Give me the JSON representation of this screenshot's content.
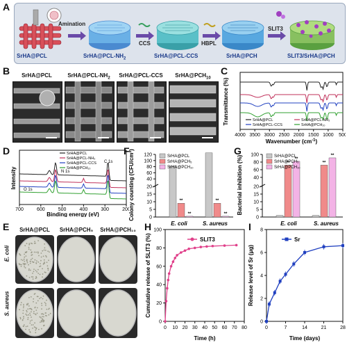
{
  "panel_letters": [
    "A",
    "B",
    "C",
    "D",
    "E",
    "F",
    "G",
    "H",
    "I"
  ],
  "panelA": {
    "steps": [
      "SrHA@PCL",
      "SrHA@PCL-NH",
      "SrHA@PCL-CCS",
      "SrHA@PCH",
      "SLIT3/SrHA@PCH"
    ],
    "step2_sub": "2",
    "arrows": [
      "Amination",
      "CCS",
      "HBPL",
      "SLIT3"
    ]
  },
  "panelB": {
    "titles": [
      "SrHA@PCL",
      "SrHA@PCL-NH",
      "SrHA@PCL-CCS",
      "SrHA@PCH"
    ],
    "title2_sub": "2",
    "title4_sub": "10"
  },
  "panelC": {
    "ylabel": "Transmittance (%)",
    "xlabel": "Wavenumber (cm",
    "xlabel_sup": "-1",
    "xlabel_end": ")",
    "xticks": [
      "4000",
      "3500",
      "3000",
      "2500",
      "2000",
      "1500",
      "1000",
      "500"
    ],
    "legend": [
      "SrHA@PCL",
      "SrHA@PCL-NH₂",
      "SrHA@PCL-CCS",
      "SrHA@PCH₁₀"
    ],
    "colors": [
      "#222222",
      "#c0305a",
      "#2040c0",
      "#30a030"
    ]
  },
  "panelD": {
    "ylabel": "Intensity",
    "xlabel": "Binding energy (eV)",
    "xticks": [
      "700",
      "600",
      "500",
      "400",
      "300",
      "200"
    ],
    "legend": [
      "SrHA@PCL",
      "SrHA@PCL-NH₂",
      "SrHA@PCL-CCS",
      "SrHA@PCH₁₀"
    ],
    "peaks": [
      "N 1s",
      "C 1s",
      "O 1s"
    ],
    "colors": [
      "#222222",
      "#c0305a",
      "#2040c0",
      "#30a030"
    ]
  },
  "panelE": {
    "cols": [
      "SrHA@PCL",
      "SrHA@PCH₅",
      "SrHA@PCH₁₀"
    ],
    "rows": [
      "E. coli",
      "S. aureus"
    ]
  },
  "panelF": {
    "ylabel": "Colony counting (CFU/cm²)",
    "yticks": [
      "0",
      "5",
      "10",
      "15",
      "20",
      "40",
      "60",
      "80",
      "100",
      "120"
    ],
    "groups": [
      "E. coli",
      "S. aureus"
    ],
    "legend": [
      "SrHA@PCL",
      "SrHA@PCH₅",
      "SrHA@PCH₁₀"
    ],
    "stars": "**",
    "colors": [
      "#c8c8c8",
      "#f08a8a",
      "#f3b3e6"
    ]
  },
  "panelG": {
    "ylabel": "Bacterial inhibition (%)",
    "yticks": [
      "0",
      "5",
      "10",
      "15",
      "20",
      "40",
      "60",
      "80",
      "100"
    ],
    "groups": [
      "E. coli",
      "S. aureus"
    ],
    "legend": [
      "SrHA@PCL",
      "SrHA@PCH₅",
      "SrHA@PCH₁₀"
    ],
    "stars": "**",
    "colors": [
      "#c8c8c8",
      "#f08a8a",
      "#f3b3e6"
    ]
  },
  "panelH": {
    "ylabel": "Cumulative release of SLIT3 (%)",
    "xlabel": "Time (h)",
    "xticks": [
      "0",
      "10",
      "20",
      "30",
      "40",
      "50",
      "60",
      "70",
      "80"
    ],
    "yticks": [
      "0",
      "20",
      "40",
      "60",
      "80",
      "100"
    ],
    "legend": "SLIT3",
    "color": "#e0408a"
  },
  "panelI": {
    "ylabel": "Release level of Sr (μg)",
    "xlabel": "Time (days)",
    "xticks": [
      "0",
      "7",
      "14",
      "21",
      "28"
    ],
    "yticks": [
      "0",
      "2",
      "4",
      "6",
      "8"
    ],
    "legend": "Sr",
    "color": "#2040c0"
  },
  "chart_data": [
    {
      "type": "bar",
      "panel": "F",
      "ylabel": "Colony counting (CFU/cm²)",
      "categories": [
        "E. coli",
        "S. aureus"
      ],
      "series": [
        {
          "name": "SrHA@PCL",
          "values": [
            82,
            125
          ]
        },
        {
          "name": "SrHA@PCH₅",
          "values": [
            9,
            9
          ]
        },
        {
          "name": "SrHA@PCH₁₀",
          "values": [
            0.5,
            0.5
          ]
        }
      ]
    },
    {
      "type": "bar",
      "panel": "G",
      "ylabel": "Bacterial inhibition (%)",
      "categories": [
        "E. coli",
        "S. aureus"
      ],
      "ylim": [
        0,
        100
      ],
      "series": [
        {
          "name": "SrHA@PCL",
          "values": [
            1,
            1
          ]
        },
        {
          "name": "SrHA@PCH₅",
          "values": [
            72,
            72
          ]
        },
        {
          "name": "SrHA@PCH₁₀",
          "values": [
            82,
            91
          ]
        }
      ]
    },
    {
      "type": "line",
      "panel": "H",
      "xlabel": "Time (h)",
      "ylabel": "Cumulative release of SLIT3 (%)",
      "xlim": [
        0,
        80
      ],
      "ylim": [
        0,
        100
      ],
      "series": [
        {
          "name": "SLIT3",
          "x": [
            0,
            1,
            2,
            3,
            4,
            6,
            8,
            10,
            12,
            16,
            20,
            24,
            30,
            36,
            42,
            48,
            60,
            72
          ],
          "y": [
            0,
            22,
            36,
            45,
            52,
            60,
            65,
            69,
            72,
            75,
            77,
            79,
            80,
            81,
            81.5,
            82,
            82.5,
            83
          ]
        }
      ]
    },
    {
      "type": "line",
      "panel": "I",
      "xlabel": "Time (days)",
      "ylabel": "Release level of Sr (μg)",
      "xlim": [
        0,
        28
      ],
      "ylim": [
        0,
        8
      ],
      "series": [
        {
          "name": "Sr",
          "x": [
            0,
            1,
            3,
            5,
            7,
            10,
            14,
            21,
            28
          ],
          "y": [
            0,
            1.5,
            2.5,
            3.5,
            4.1,
            5.0,
            6.0,
            6.5,
            6.6
          ]
        }
      ]
    }
  ]
}
